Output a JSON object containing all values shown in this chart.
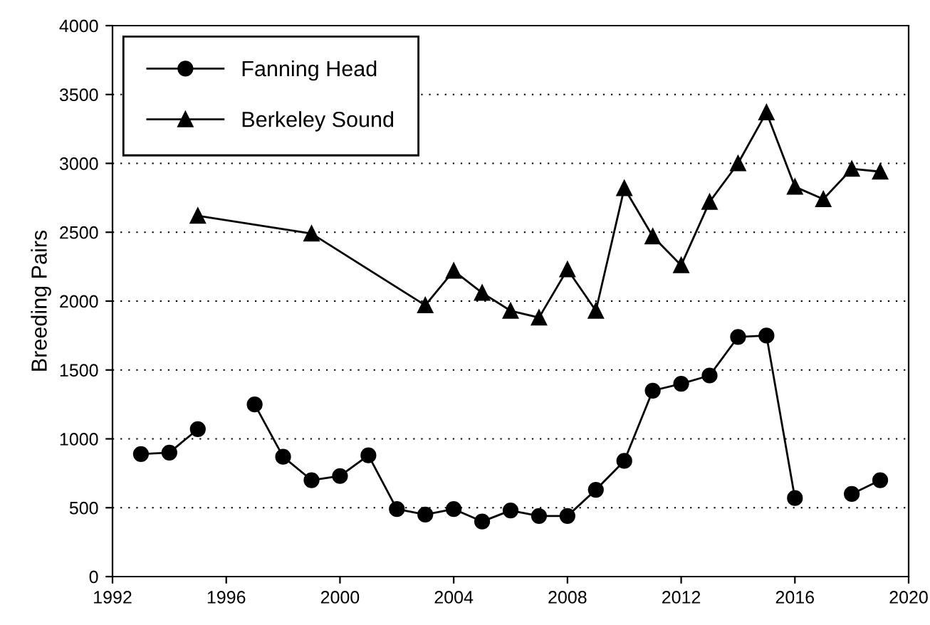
{
  "chart_data": {
    "type": "line",
    "ylabel": "Breeding Pairs",
    "xlim": [
      1992,
      2020
    ],
    "xticks": [
      1992,
      1996,
      2000,
      2004,
      2008,
      2012,
      2016,
      2020
    ],
    "ylim": [
      0,
      4000
    ],
    "yticks": [
      0,
      500,
      1000,
      1500,
      2000,
      2500,
      3000,
      3500,
      4000
    ],
    "grid": "y",
    "legend": "top left",
    "line_style": "solid",
    "series": [
      {
        "name": "Fanning Head",
        "color": "#000000",
        "marker": "circle",
        "x": [
          1993,
          1994,
          1995,
          1996,
          1997,
          1998,
          1999,
          2000,
          2001,
          2002,
          2003,
          2004,
          2005,
          2006,
          2007,
          2008,
          2009,
          2010,
          2011,
          2012,
          2013,
          2014,
          2015,
          2016,
          2017,
          2018,
          2019
        ],
        "values": [
          890,
          900,
          1070,
          null,
          1250,
          870,
          700,
          730,
          880,
          490,
          450,
          490,
          400,
          480,
          440,
          440,
          630,
          840,
          1350,
          1400,
          1460,
          1740,
          1750,
          570,
          null,
          600,
          700
        ]
      },
      {
        "name": "Berkeley Sound",
        "color": "#000000",
        "marker": "triangle",
        "x": [
          1995,
          1999,
          2003,
          2004,
          2005,
          2006,
          2007,
          2008,
          2009,
          2010,
          2011,
          2012,
          2013,
          2014,
          2015,
          2016,
          2017,
          2018,
          2019
        ],
        "values": [
          2620,
          2490,
          1970,
          2220,
          2060,
          1930,
          1880,
          2230,
          1930,
          2820,
          2470,
          2260,
          2720,
          3000,
          3370,
          2830,
          2740,
          2960,
          2940
        ]
      }
    ]
  }
}
